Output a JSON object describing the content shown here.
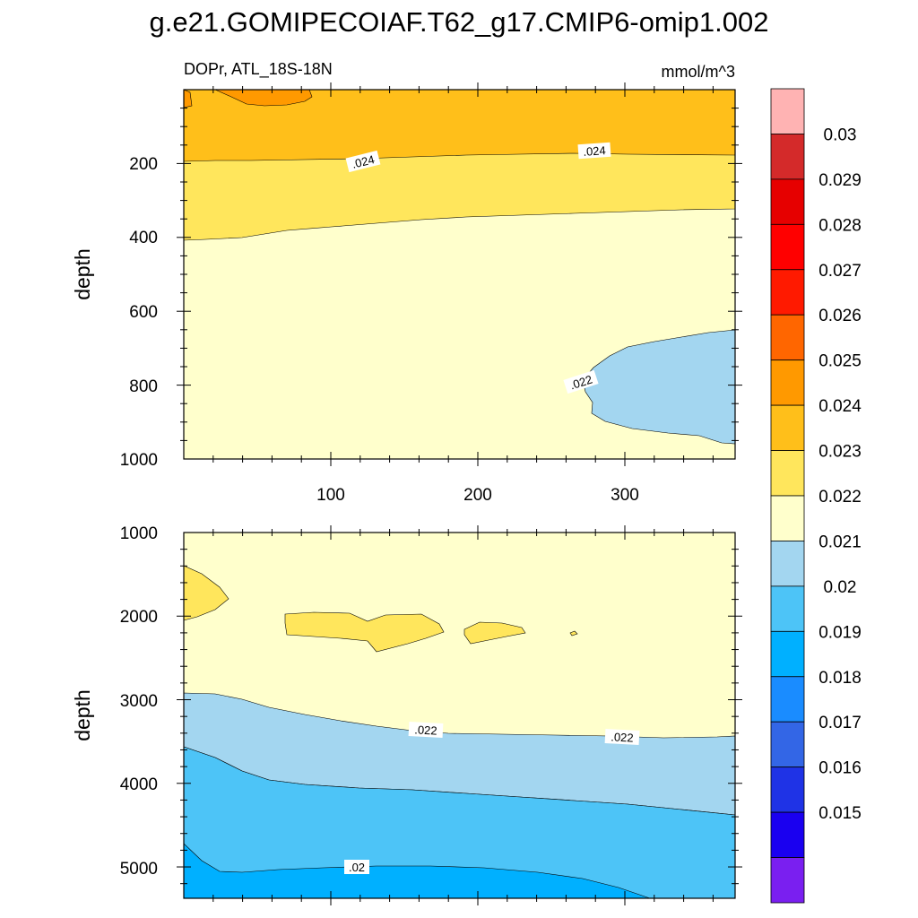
{
  "chart_data": {
    "type": "filled-contour",
    "title": "g.e21.GOMIPECOIAF.T62_g17.CMIP6-omip1.002",
    "left_subtitle": "DOPr, ATL_18S-18N",
    "right_subtitle": "mmol/m^3",
    "colorbar": {
      "labels": [
        "0.03",
        "0.029",
        "0.028",
        "0.027",
        "0.026",
        "0.025",
        "0.024",
        "0.023",
        "0.022",
        "0.021",
        "0.02",
        "0.019",
        "0.018",
        "0.017",
        "0.016",
        "0.015"
      ],
      "colors": [
        "#ffb3b3",
        "#d42a2a",
        "#e60000",
        "#ff0000",
        "#ff1a00",
        "#ff6600",
        "#ff9900",
        "#ffbf1a",
        "#ffe65c",
        "#ffffcc",
        "#a3d6f0",
        "#4dc4f7",
        "#00b0ff",
        "#1a8cff",
        "#3366e6",
        "#1f33e6",
        "#1a00f0",
        "#7a1ff0"
      ]
    },
    "panels": [
      {
        "name": "upper",
        "ylabel": "depth",
        "yticks": [
          "200",
          "400",
          "600",
          "800",
          "1000"
        ],
        "ylim": [
          1000,
          0
        ],
        "xticks": [
          "100",
          "200",
          "300"
        ],
        "xlim": [
          0,
          375
        ],
        "contour_labels": [
          ".024",
          ".024",
          ".022"
        ]
      },
      {
        "name": "lower",
        "ylabel": "depth",
        "yticks": [
          "1000",
          "2000",
          "3000",
          "4000",
          "5000"
        ],
        "ylim": [
          5375,
          1000
        ],
        "xlim": [
          0,
          375
        ],
        "contour_labels": [
          ".022",
          ".022",
          ".02"
        ]
      }
    ]
  }
}
